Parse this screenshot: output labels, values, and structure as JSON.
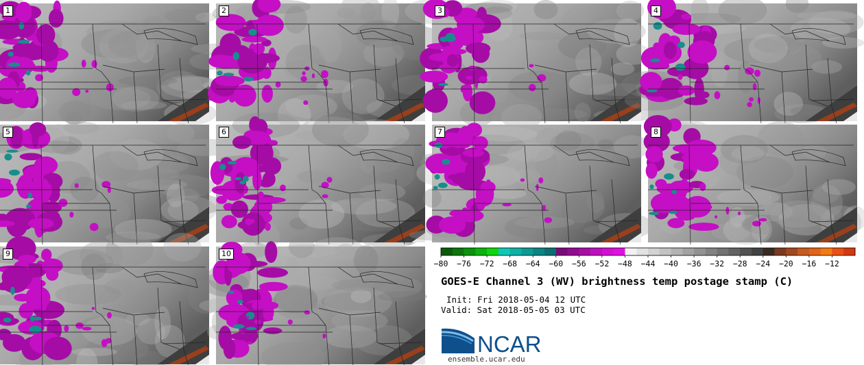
{
  "panels": [
    {
      "label": "1",
      "seed": 1
    },
    {
      "label": "2",
      "seed": 2
    },
    {
      "label": "3",
      "seed": 3
    },
    {
      "label": "4",
      "seed": 4
    },
    {
      "label": "5",
      "seed": 5
    },
    {
      "label": "6",
      "seed": 6
    },
    {
      "label": "7",
      "seed": 7
    },
    {
      "label": "8",
      "seed": 8
    },
    {
      "label": "9",
      "seed": 9
    },
    {
      "label": "10",
      "seed": 10
    }
  ],
  "colorbar": {
    "ticks": [
      "−80",
      "−76",
      "−72",
      "−68",
      "−64",
      "−60",
      "−56",
      "−52",
      "−48",
      "−44",
      "−40",
      "−36",
      "−32",
      "−28",
      "−24",
      "−20",
      "−16",
      "−12"
    ],
    "colors": [
      "#0a5a0a",
      "#0b760b",
      "#0c930c",
      "#0db30d",
      "#0ed50e",
      "#12c6b6",
      "#10b0a6",
      "#0d9a94",
      "#0b8482",
      "#0a6f72",
      "#7a0a7a",
      "#900c90",
      "#a60ea6",
      "#bc10bc",
      "#d210d2",
      "#e010e0",
      "#f2f2f2",
      "#e2e2e2",
      "#d2d2d2",
      "#c2c2c2",
      "#b2b2b2",
      "#a2a2a2",
      "#929292",
      "#828282",
      "#727272",
      "#626262",
      "#525252",
      "#424242",
      "#3a2a22",
      "#7a3a1e",
      "#a04820",
      "#c65a1e",
      "#e0641a",
      "#f27a12",
      "#e85016",
      "#d23812"
    ]
  },
  "title": "GOES-E Channel 3 (WV) brightness temp postage stamp (C)",
  "init_text": "Init: Fri 2018-05-04 12 UTC",
  "valid_text": "Valid: Sat 2018-05-05 03 UTC",
  "logo": {
    "brand": "NCAR",
    "url": "ensemble.ucar.edu",
    "brand_color": "#0e4f8c",
    "swoosh_color": "#3a8fd0"
  }
}
